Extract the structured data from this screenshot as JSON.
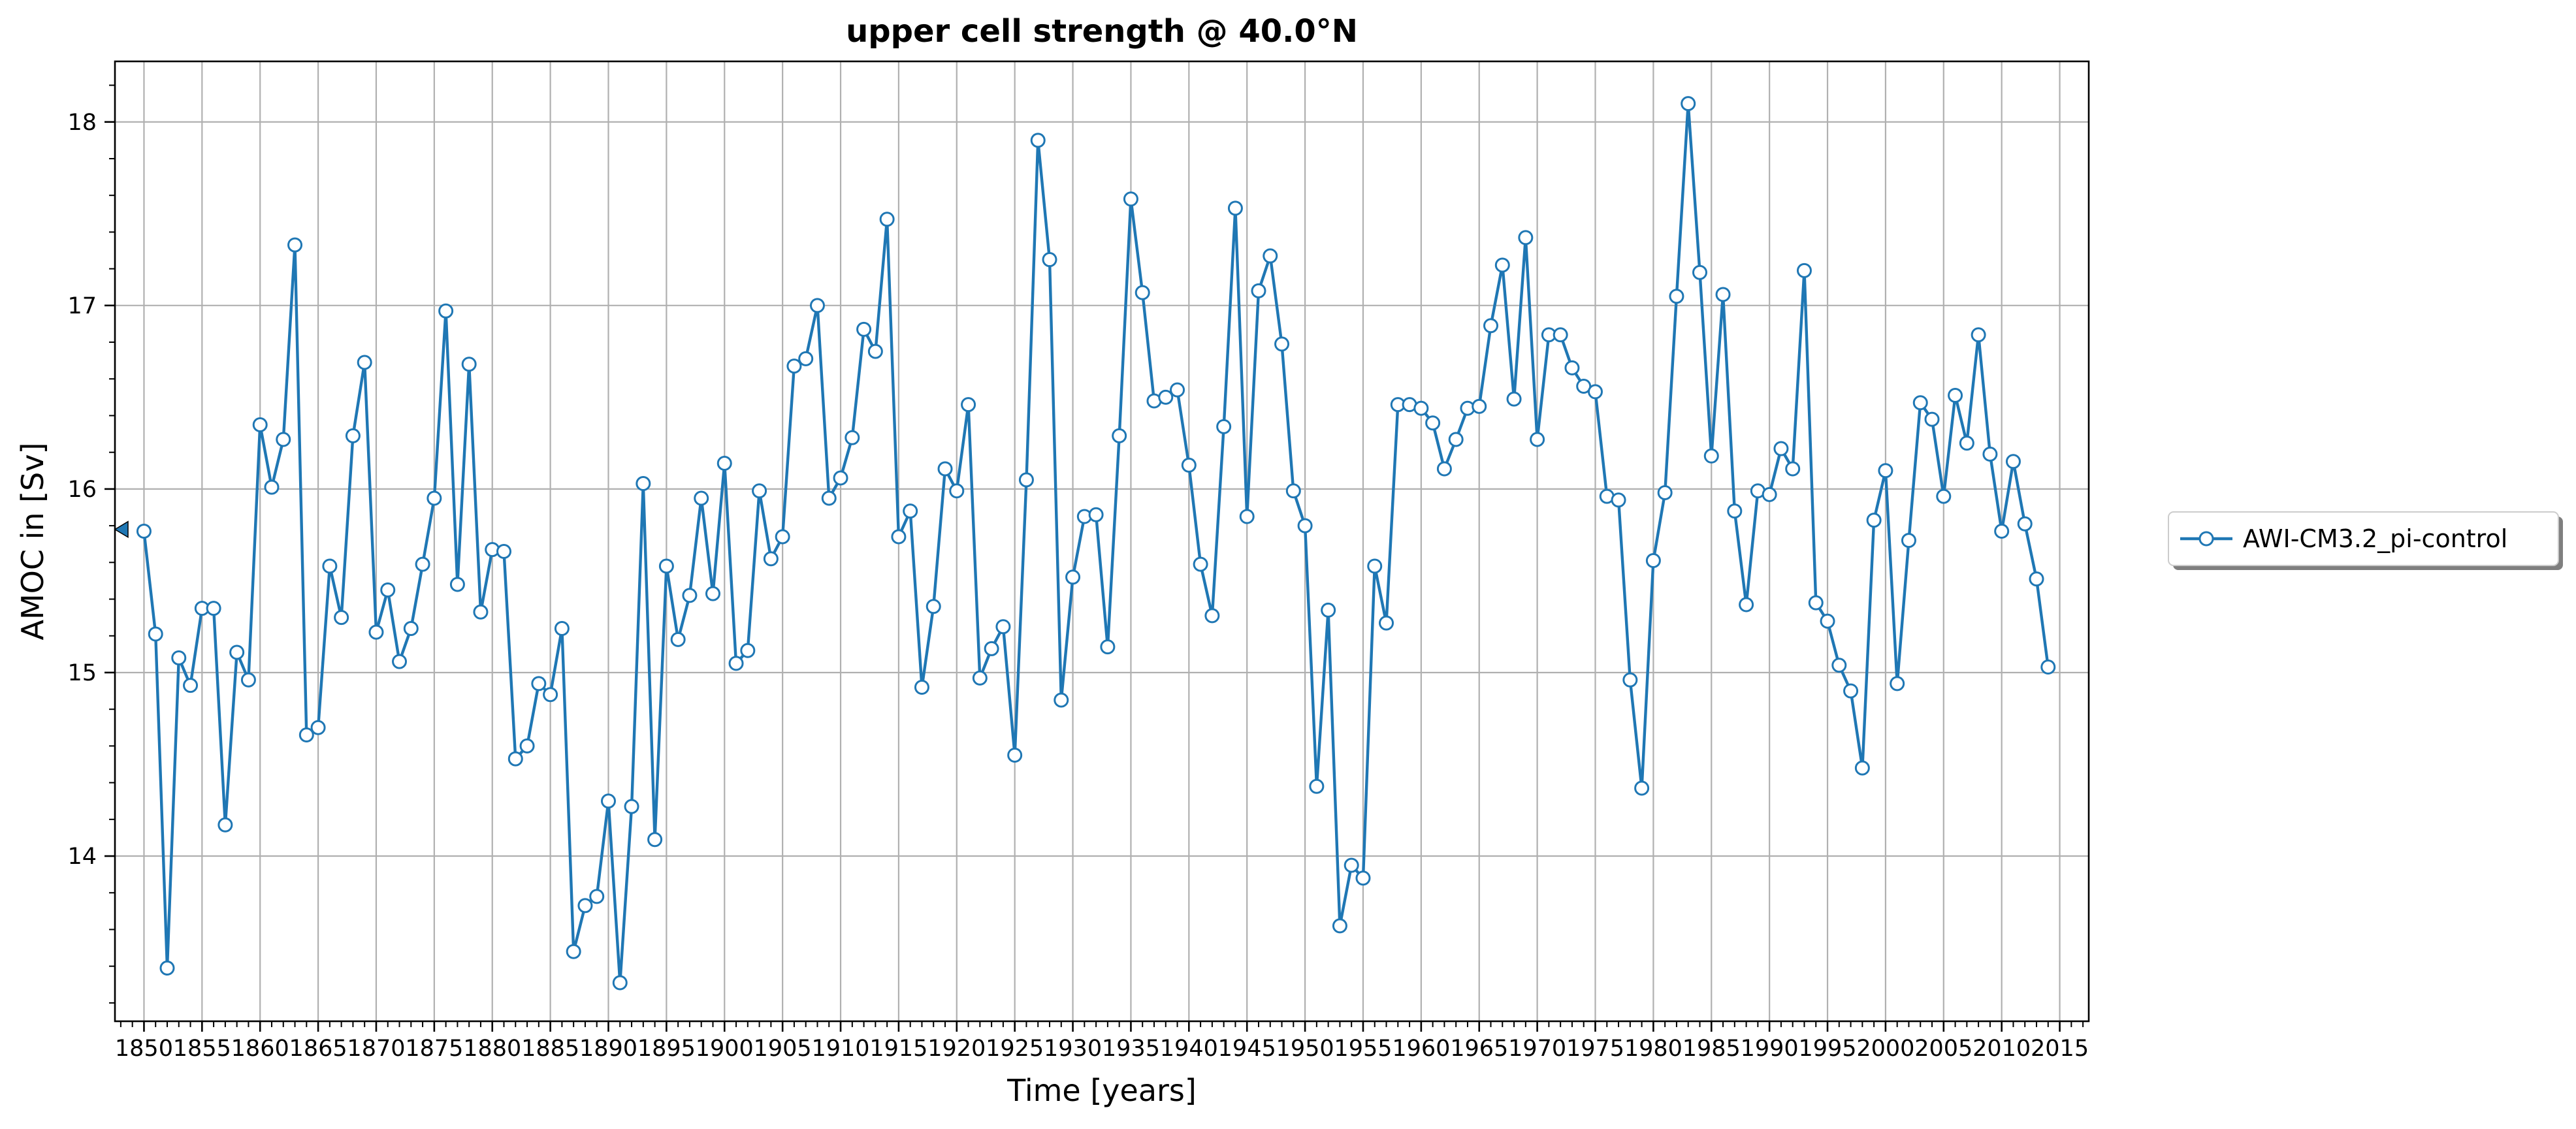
{
  "chart_data": {
    "type": "line",
    "title": "upper cell strength @ 40.0°N",
    "xlabel": "Time [years]",
    "ylabel": "AMOC in [Sv]",
    "xlim": [
      1847.5,
      2017.5
    ],
    "ylim": [
      13.1,
      18.33
    ],
    "x_ticks": [
      1850,
      1855,
      1860,
      1865,
      1870,
      1875,
      1880,
      1885,
      1890,
      1895,
      1900,
      1905,
      1910,
      1915,
      1920,
      1925,
      1930,
      1935,
      1940,
      1945,
      1950,
      1955,
      1960,
      1965,
      1970,
      1975,
      1980,
      1985,
      1990,
      1995,
      2000,
      2005,
      2010,
      2015
    ],
    "x_tick_labels": [
      "1850",
      "1855",
      "1860",
      "1865",
      "1870",
      "1875",
      "1880",
      "1885",
      "1890",
      "1895",
      "1900",
      "1905",
      "1910",
      "1915",
      "1920",
      "1925",
      "1930",
      "1935",
      "1940",
      "1945",
      "1950",
      "1955",
      "1960",
      "1965",
      "1970",
      "1975",
      "1980",
      "1985",
      "1990",
      "1995",
      "2000",
      "2005",
      "2010",
      "2015"
    ],
    "y_ticks": [
      14,
      15,
      16,
      17,
      18
    ],
    "y_tick_labels": [
      "14",
      "15",
      "16",
      "17",
      "18"
    ],
    "grid": true,
    "legend_position": "right-outside",
    "mean_marker_value": 15.78,
    "series": [
      {
        "name": "AWI-CM3.2_pi-control",
        "color": "#1f77b4",
        "marker": "open-circle",
        "x_start": 1850,
        "values": [
          15.77,
          15.21,
          13.39,
          15.08,
          14.93,
          15.35,
          15.35,
          14.17,
          15.11,
          14.96,
          16.35,
          16.01,
          16.27,
          17.33,
          14.66,
          14.7,
          15.58,
          15.3,
          16.29,
          16.69,
          15.22,
          15.45,
          15.06,
          15.24,
          15.59,
          15.95,
          16.97,
          15.48,
          16.68,
          15.33,
          15.67,
          15.66,
          14.53,
          14.6,
          14.94,
          14.88,
          15.24,
          13.48,
          13.73,
          13.78,
          14.3,
          13.31,
          14.27,
          16.03,
          14.09,
          15.58,
          15.18,
          15.42,
          15.95,
          15.43,
          16.14,
          15.05,
          15.12,
          15.99,
          15.62,
          15.74,
          16.67,
          16.71,
          17.0,
          15.95,
          16.06,
          16.28,
          16.87,
          16.75,
          17.47,
          15.74,
          15.88,
          14.92,
          15.36,
          16.11,
          15.99,
          16.46,
          14.97,
          15.13,
          15.25,
          14.55,
          16.05,
          17.9,
          17.25,
          14.85,
          15.52,
          15.85,
          15.86,
          15.14,
          16.29,
          17.58,
          17.07,
          16.48,
          16.5,
          16.54,
          16.13,
          15.59,
          15.31,
          16.34,
          17.53,
          15.85,
          17.08,
          17.27,
          16.79,
          15.99,
          15.8,
          14.38,
          15.34,
          13.62,
          13.95,
          13.88,
          15.58,
          15.27,
          16.46,
          16.46,
          16.44,
          16.36,
          16.11,
          16.27,
          16.44,
          16.45,
          16.89,
          17.22,
          16.49,
          17.37,
          16.27,
          16.84,
          16.84,
          16.66,
          16.56,
          16.53,
          15.96,
          15.94,
          14.96,
          14.37,
          15.61,
          15.98,
          17.05,
          18.1,
          17.18,
          16.18,
          17.06,
          15.88,
          15.37,
          15.99,
          15.97,
          16.22,
          16.11,
          17.19,
          15.38,
          15.28,
          15.04,
          14.9,
          14.48,
          15.83,
          16.1,
          14.94,
          15.72,
          16.47,
          16.38,
          15.96,
          16.51,
          16.25,
          16.84,
          16.19,
          15.77,
          16.15,
          15.81,
          15.51,
          15.03
        ]
      }
    ]
  }
}
